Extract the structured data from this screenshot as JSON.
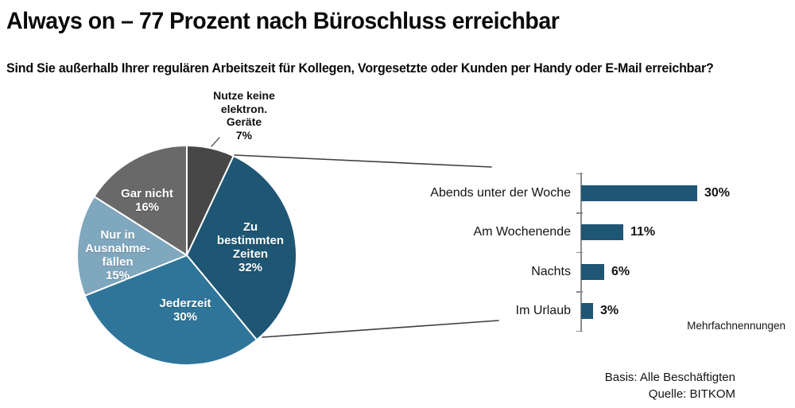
{
  "page": {
    "title": "Always on – 77 Prozent nach Büroschluss erreichbar",
    "subtitle": "Sind Sie außerhalb Ihrer regulären Arbeitszeit für Kollegen, Vorgesetzte oder Kunden per Handy oder E-Mail erreichbar?"
  },
  "colors": {
    "dark_blue": "#1E5674",
    "medium_blue": "#2F7599",
    "light_blue": "#7FA7BE",
    "medium_gray": "#696969",
    "dark_gray": "#474747",
    "axis_gray": "#8c8c8c",
    "text_black": "#141414"
  },
  "chart_data": [
    {
      "type": "pie",
      "start_angle_deg": 0,
      "direction": "clockwise",
      "slices": [
        {
          "label": "Nutze keine elektron. Geräte",
          "value": 7,
          "color": "#474747"
        },
        {
          "label": "Zu bestimmten Zeiten",
          "value": 32,
          "color": "#1E5674"
        },
        {
          "label": "Jederzeit",
          "value": 30,
          "color": "#2F7599"
        },
        {
          "label": "Nur in Ausnahmefällen",
          "value": 15,
          "color": "#7FA7BE"
        },
        {
          "label": "Gar nicht",
          "value": 16,
          "color": "#696969"
        }
      ]
    },
    {
      "type": "bar",
      "orientation": "horizontal",
      "categories": [
        "Abends unter der Woche",
        "Am Wochenende",
        "Nachts",
        "Im Urlaub"
      ],
      "values": [
        30,
        11,
        6,
        3
      ],
      "value_labels": [
        "30%",
        "11%",
        "6%",
        "3%"
      ],
      "bar_color": "#1E5674",
      "xlim": [
        0,
        30
      ],
      "note": "Mehrfachnennungen"
    }
  ],
  "pie_labels": {
    "nutze_keine": "Nutze keine\nelektron.\nGeräte\n7%",
    "zu_bestimmten": "Zu\nbestimmten\nZeiten\n32%",
    "jederzeit": "Jederzeit\n30%",
    "ausnahme": "Nur in\nAusnahme-\nfällen\n15%",
    "gar_nicht": "Gar nicht\n16%"
  },
  "footer": {
    "basis": "Basis: Alle Beschäftigten",
    "quelle": "Quelle: BITKOM"
  }
}
